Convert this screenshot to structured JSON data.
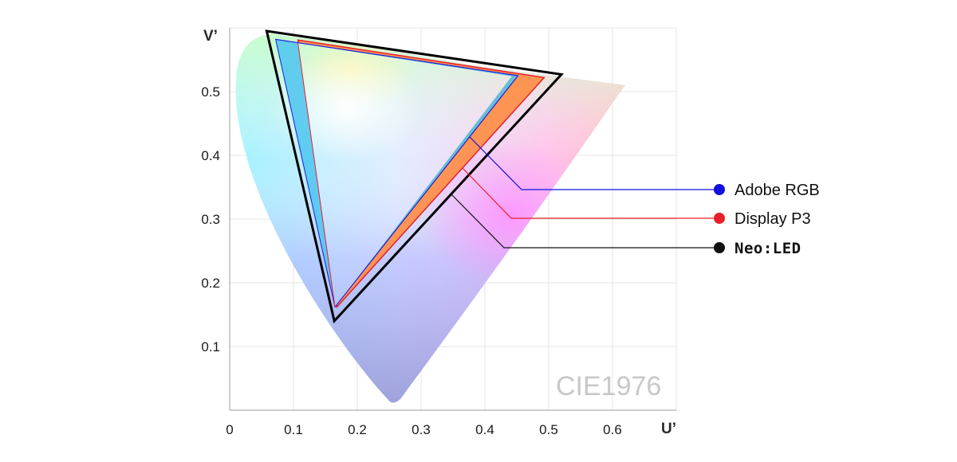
{
  "chart_data": {
    "type": "scatter",
    "title": "",
    "xlabel": "U’",
    "ylabel": "V’",
    "xlim": [
      0,
      0.7
    ],
    "ylim": [
      0,
      0.6
    ],
    "x_ticks": [
      "0",
      "0.1",
      "0.2",
      "0.3",
      "0.4",
      "0.5",
      "0.6"
    ],
    "y_ticks": [
      "0.1",
      "0.2",
      "0.3",
      "0.4",
      "0.5"
    ],
    "grid": true,
    "watermark": "CIE1976",
    "legend_position": "right",
    "spectral_locus": [
      [
        0.255,
        0.01
      ],
      [
        0.01,
        0.58
      ],
      [
        0.07,
        0.59
      ],
      [
        0.22,
        0.57
      ],
      [
        0.39,
        0.54
      ],
      [
        0.62,
        0.51
      ]
    ],
    "series": [
      {
        "name": "Neo:LED",
        "color": "#000000",
        "fill": "none",
        "vertices": [
          [
            0.058,
            0.595
          ],
          [
            0.52,
            0.527
          ],
          [
            0.164,
            0.14
          ]
        ]
      },
      {
        "name": "Display P3",
        "color": "#e8202a",
        "fill": "#ff8c42",
        "vertices": [
          [
            0.107,
            0.581
          ],
          [
            0.493,
            0.522
          ],
          [
            0.168,
            0.162
          ]
        ]
      },
      {
        "name": "Adobe RGB",
        "color": "#1a1ae6",
        "fill": "#4cc4ee",
        "vertices": [
          [
            0.072,
            0.582
          ],
          [
            0.452,
            0.525
          ],
          [
            0.165,
            0.162
          ]
        ]
      }
    ],
    "inner_triangle": {
      "vertices": [
        [
          0.107,
          0.576
        ],
        [
          0.442,
          0.524
        ],
        [
          0.165,
          0.162
        ]
      ]
    },
    "legend": [
      {
        "name": "Adobe RGB",
        "color": "#1010e0"
      },
      {
        "name": "Display P3",
        "color": "#e8202a"
      },
      {
        "name": "Neo:LED",
        "color": "#111111"
      }
    ]
  }
}
